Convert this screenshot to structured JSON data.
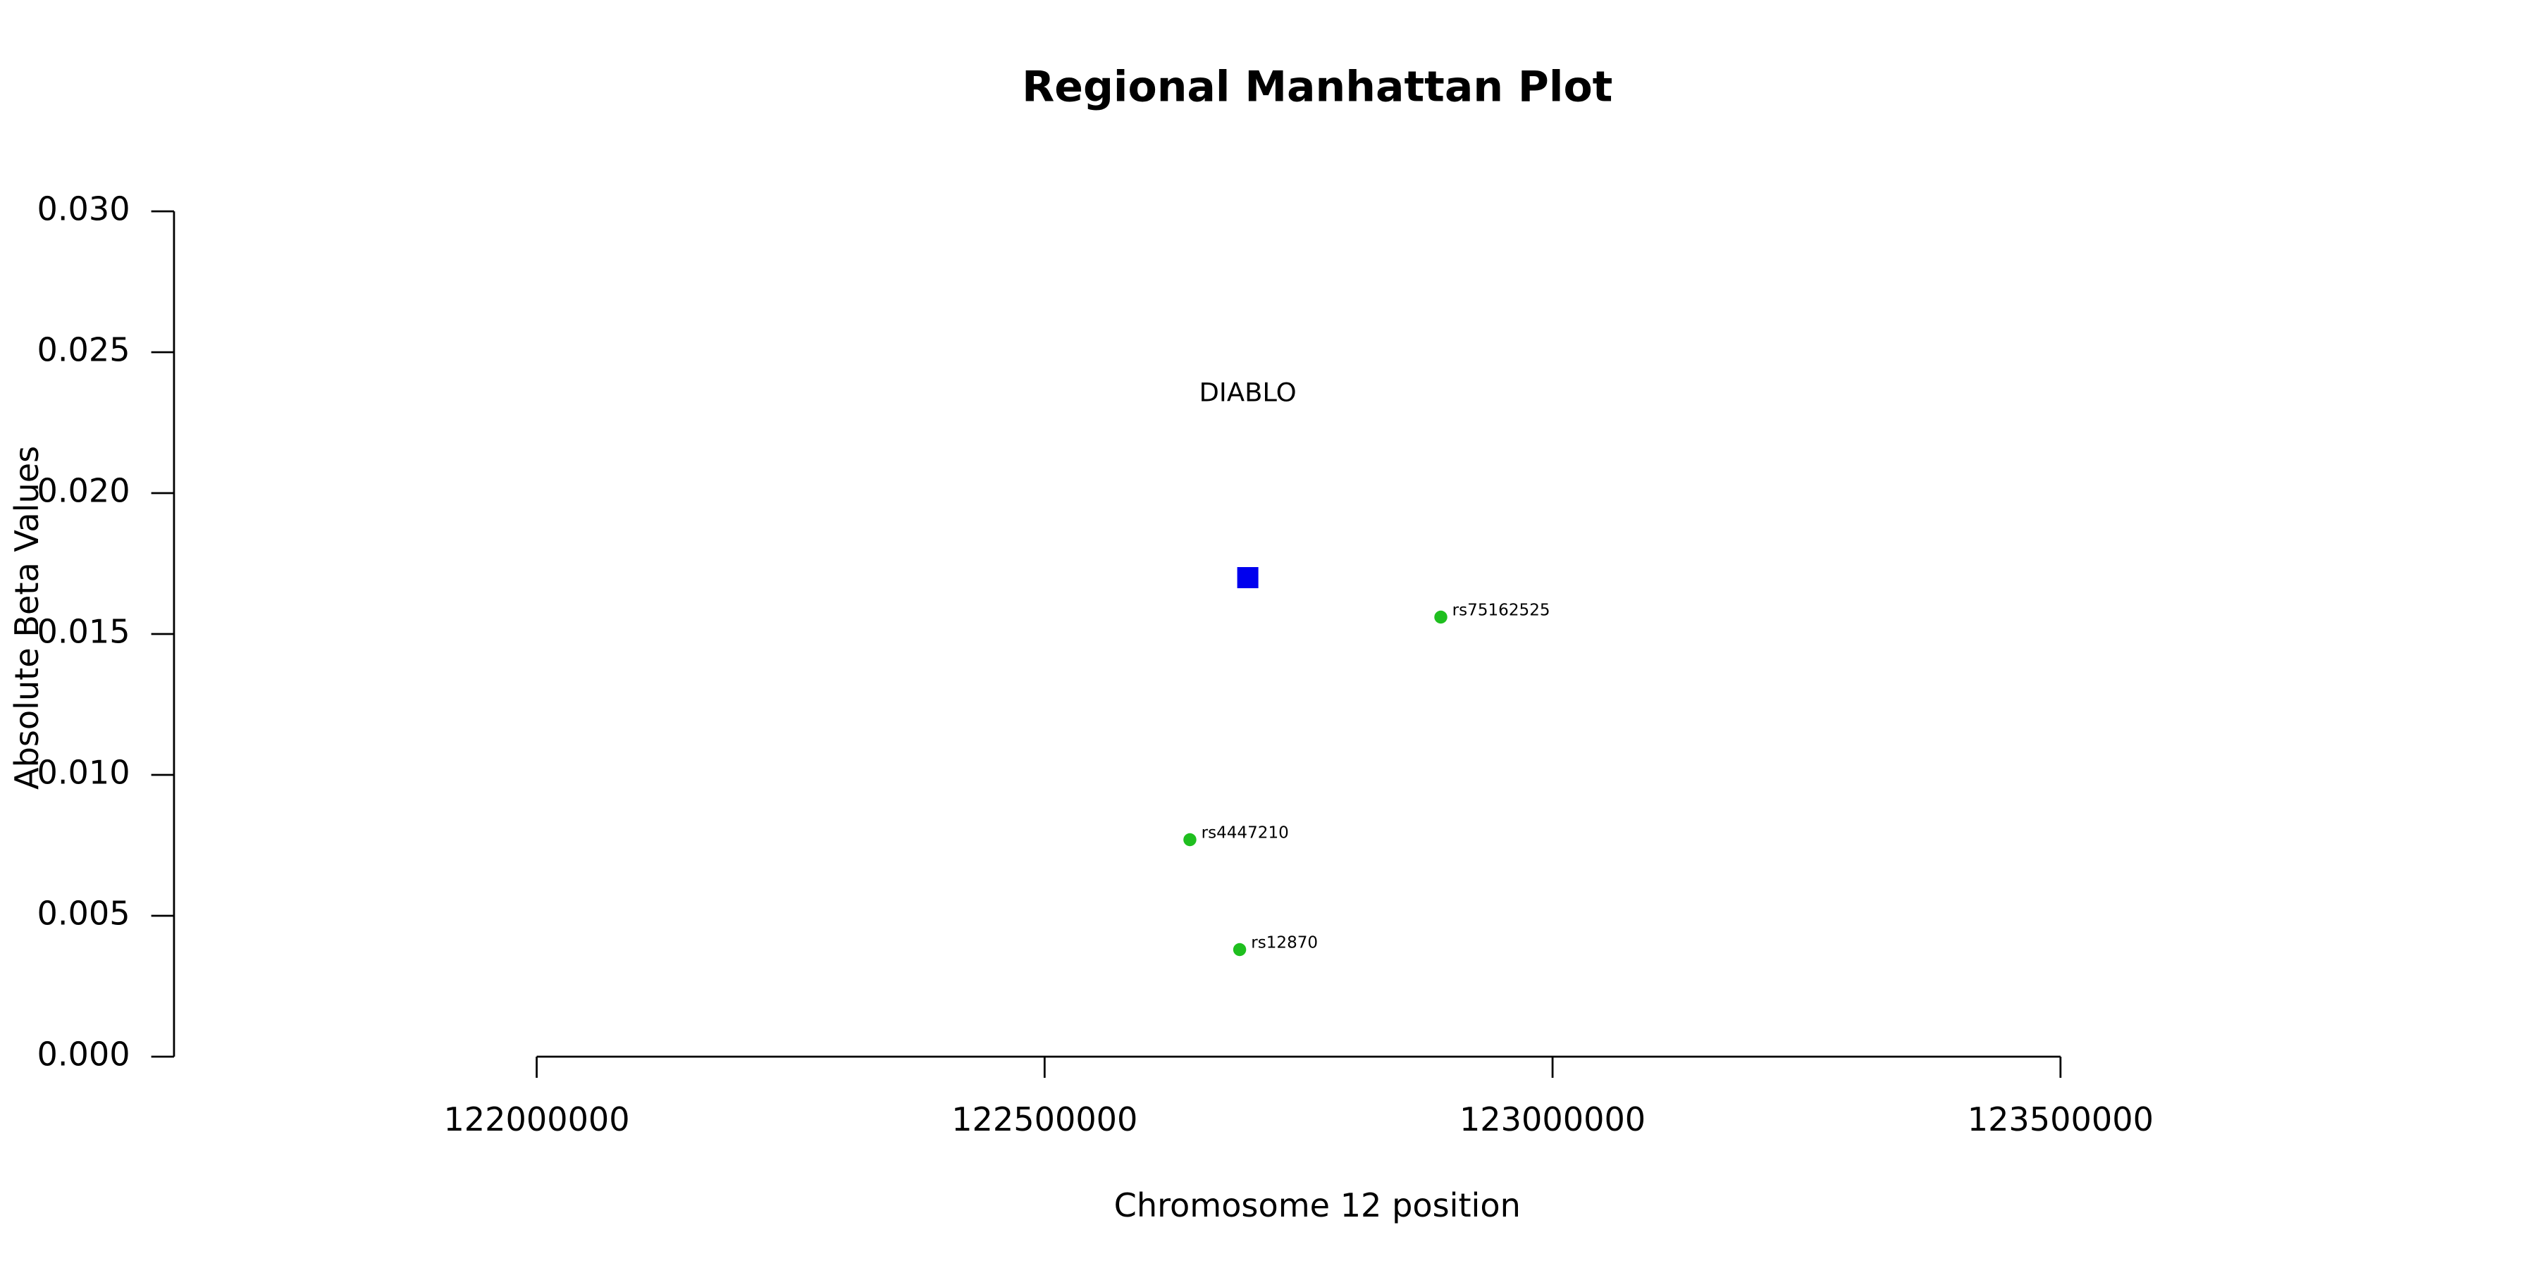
{
  "chart_data": {
    "type": "scatter",
    "title": "Regional Manhattan Plot",
    "x_label": "Chromosome 12 position",
    "y_label": "Absolute Beta Values",
    "xlim": [
      121643000,
      123857000
    ],
    "xticks": [
      122000000,
      122500000,
      123000000,
      123500000
    ],
    "ylim": [
      0,
      0.03
    ],
    "yticks": [
      {
        "value": 0,
        "label": "0.000"
      },
      0.005,
      {
        "value": 0.01,
        "label": "0.010"
      },
      0.015,
      {
        "value": 0.02,
        "label": "0.020"
      },
      0.025,
      {
        "value": 0.03,
        "label": "0.030"
      }
    ],
    "grid": false,
    "points": [
      {
        "label": "DIABLO",
        "x": 122700000,
        "y": 0.017,
        "color": "#0000ee",
        "shape": "square"
      },
      {
        "label": "rs75162525",
        "x": 122890000,
        "y": 0.0156,
        "color": "#1fbf1f",
        "shape": "circle"
      },
      {
        "label": "rs4447210",
        "x": 122643000,
        "y": 0.0077,
        "color": "#1fbf1f",
        "shape": "circle"
      },
      {
        "label": "rs12870",
        "x": 122692000,
        "y": 0.0038,
        "color": "#1fbf1f",
        "shape": "circle"
      }
    ]
  }
}
